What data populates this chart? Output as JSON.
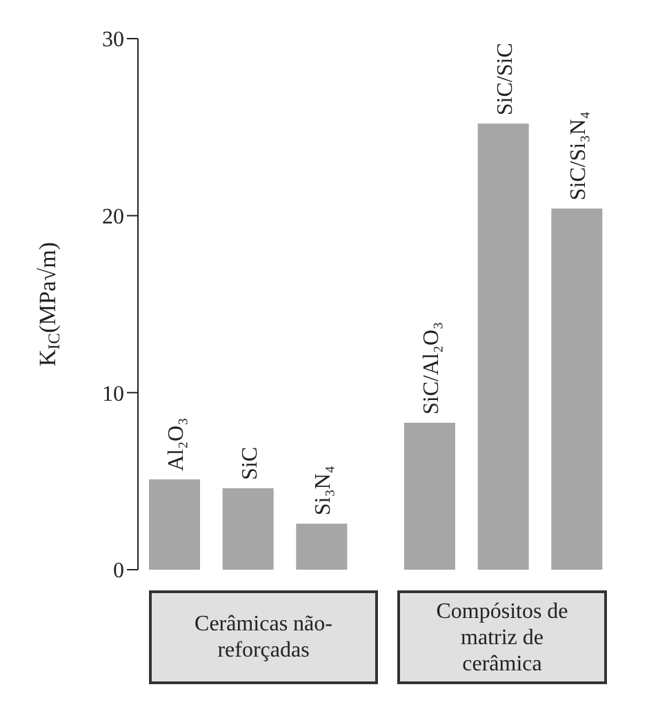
{
  "chart_data": {
    "type": "bar",
    "ylabel": "K$_{IC}$(MPa√m)",
    "categories": [
      "Al₂O₃",
      "SiC",
      "Si₃N₄",
      "SiC/Al₂O₃",
      "SiC/SiC",
      "SiC/Si₃N₄"
    ],
    "values": [
      5.1,
      4.6,
      2.6,
      8.3,
      25.2,
      20.4
    ],
    "color": "#a6a6a6",
    "ylim": [
      0,
      30
    ],
    "yticks": [
      0,
      10,
      20,
      30
    ],
    "grid": false,
    "annotations": [
      "Cerâmicas não-reforçadas",
      "Compósitos de matriz de cerâmica"
    ]
  }
}
